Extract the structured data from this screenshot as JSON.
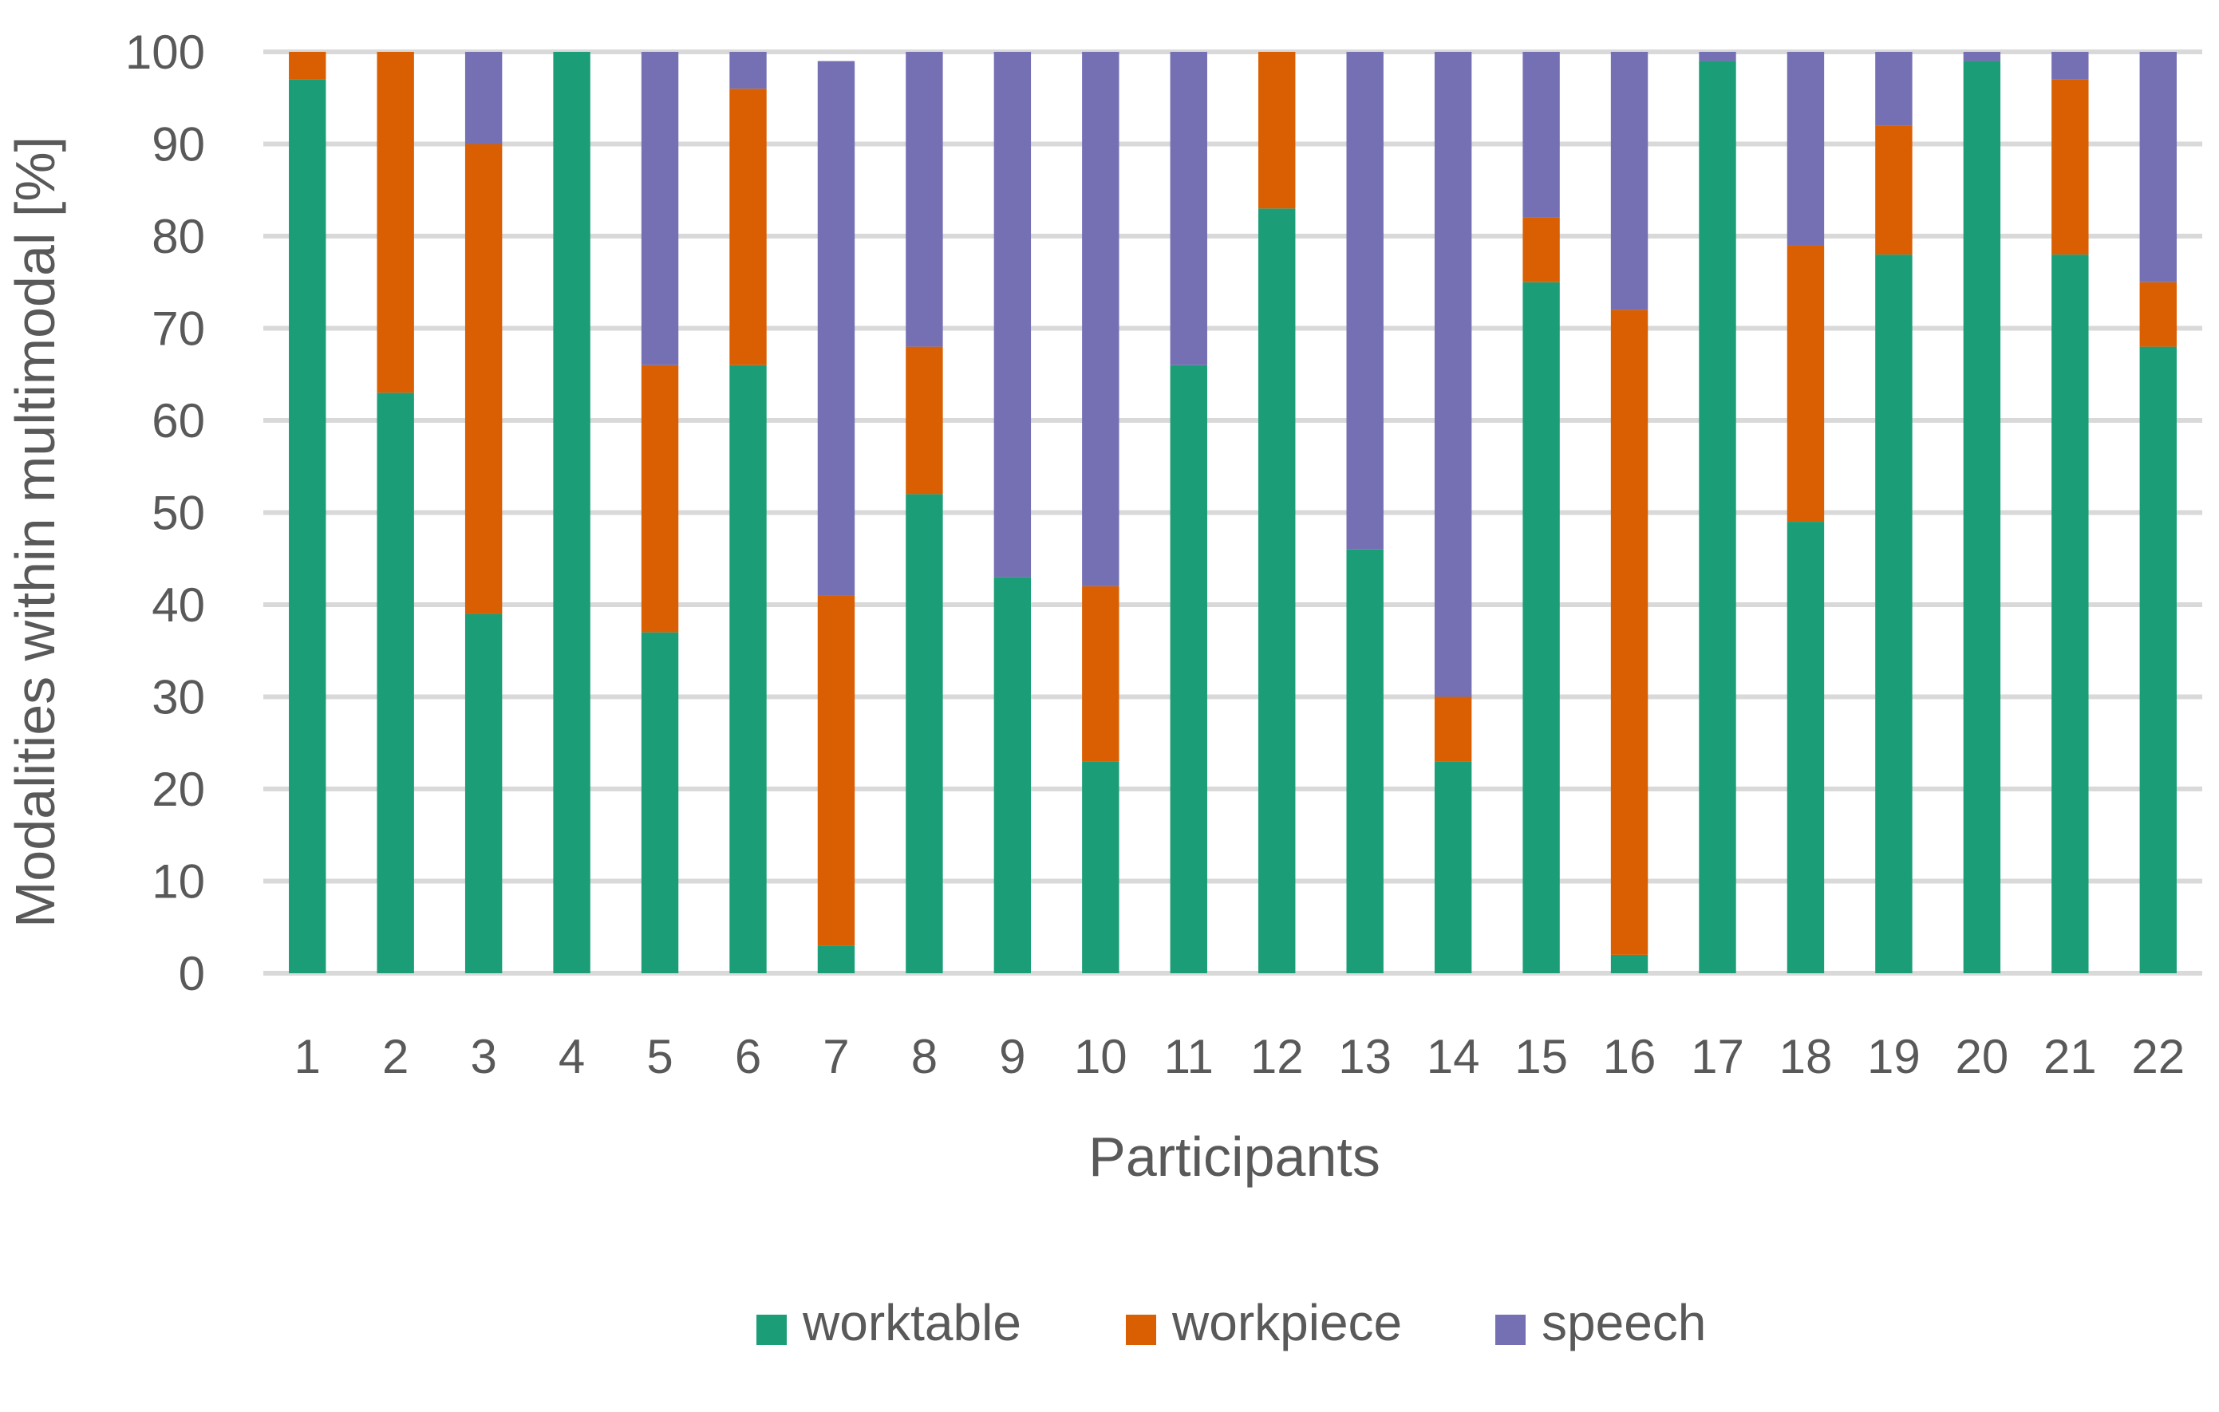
{
  "chart_data": {
    "type": "bar",
    "stacked": true,
    "title": "",
    "xlabel": "Participants",
    "ylabel": "Modalities within multimodal [%]",
    "ylim": [
      0,
      100
    ],
    "yticks": [
      0,
      10,
      20,
      30,
      40,
      50,
      60,
      70,
      80,
      90,
      100
    ],
    "grid": true,
    "legend_position": "bottom",
    "categories": [
      "1",
      "2",
      "3",
      "4",
      "5",
      "6",
      "7",
      "8",
      "9",
      "10",
      "11",
      "12",
      "13",
      "14",
      "15",
      "16",
      "17",
      "18",
      "19",
      "20",
      "21",
      "22"
    ],
    "series": [
      {
        "name": "worktable",
        "color": "#1b9e77",
        "values": [
          97,
          63,
          39,
          100,
          37,
          66,
          3,
          52,
          43,
          23,
          66,
          83,
          46,
          23,
          75,
          2,
          99,
          49,
          78,
          99,
          78,
          68
        ]
      },
      {
        "name": "workpiece",
        "color": "#d95f02",
        "values": [
          3,
          37,
          51,
          0,
          29,
          30,
          38,
          16,
          0,
          19,
          0,
          17,
          0,
          7,
          7,
          70,
          0,
          30,
          14,
          0,
          19,
          7
        ]
      },
      {
        "name": "speech",
        "color": "#7570b3",
        "values": [
          0,
          0,
          10,
          0,
          34,
          4,
          58,
          32,
          57,
          58,
          34,
          0,
          54,
          70,
          18,
          28,
          1,
          21,
          8,
          1,
          3,
          25
        ]
      }
    ]
  }
}
